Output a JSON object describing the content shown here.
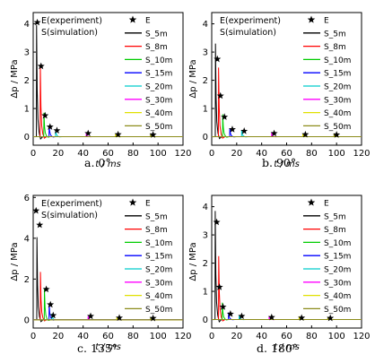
{
  "figure_captions": [
    "a.  0°",
    "b.  90°",
    "c.  135°",
    "d.  180°"
  ],
  "chart_data": [
    {
      "type": "line",
      "panel": "a",
      "caption": "a.  0°",
      "xlabel": "t / ms",
      "ylabel": "Δp / MPa",
      "xlim": [
        0,
        120
      ],
      "ylim": [
        -0.3,
        4.4
      ],
      "xticks": [
        0,
        20,
        40,
        60,
        80,
        100,
        120
      ],
      "yticks": [
        0,
        1,
        2,
        3,
        4
      ],
      "notes": [
        "E(experiment)",
        "S(simulation)"
      ],
      "legend": [
        "E",
        "S_5m",
        "S_8m",
        "S_10m",
        "S_15m",
        "S_20m",
        "S_30m",
        "S_40m",
        "S_50m"
      ],
      "legend_position": "top-right",
      "experiment": {
        "name": "E",
        "color": "#000000",
        "points": [
          [
            3.3,
            4.05
          ],
          [
            6.3,
            2.5
          ],
          [
            9.5,
            0.75
          ],
          [
            13.5,
            0.35
          ],
          [
            19.0,
            0.22
          ],
          [
            44.0,
            0.12
          ],
          [
            68.0,
            0.08
          ],
          [
            96.0,
            0.07
          ]
        ]
      },
      "series": [
        {
          "name": "S_5m",
          "color": "#000000",
          "arrival": 2.7,
          "peak": 3.95
        },
        {
          "name": "S_8m",
          "color": "#ff0000",
          "arrival": 5.7,
          "peak": 2.55
        },
        {
          "name": "S_10m",
          "color": "#00cc00",
          "arrival": 8.6,
          "peak": 0.85
        },
        {
          "name": "S_15m",
          "color": "#0000ff",
          "arrival": 12.8,
          "peak": 0.4
        },
        {
          "name": "S_20m",
          "color": "#00cccc",
          "arrival": 18.0,
          "peak": 0.26
        },
        {
          "name": "S_30m",
          "color": "#ff00ff",
          "arrival": 42.5,
          "peak": 0.13
        },
        {
          "name": "S_40m",
          "color": "#e0e000",
          "arrival": 66.0,
          "peak": 0.1
        },
        {
          "name": "S_50m",
          "color": "#8c8c1a",
          "arrival": 94.0,
          "peak": 0.08
        }
      ]
    },
    {
      "type": "line",
      "panel": "b",
      "caption": "b.  90°",
      "xlabel": "t / ms",
      "ylabel": "Δp / MPa",
      "xlim": [
        0,
        120
      ],
      "ylim": [
        -0.3,
        4.4
      ],
      "xticks": [
        0,
        20,
        40,
        60,
        80,
        100,
        120
      ],
      "yticks": [
        0,
        1,
        2,
        3,
        4
      ],
      "notes": [
        "E(experiment)",
        "S(simulation)"
      ],
      "legend": [
        "E",
        "S_5m",
        "S_8m",
        "S_10m",
        "S_15m",
        "S_20m",
        "S_30m",
        "S_40m",
        "S_50m"
      ],
      "legend_position": "top-right",
      "experiment": {
        "name": "E",
        "color": "#000000",
        "points": [
          [
            4.5,
            2.75
          ],
          [
            7.0,
            1.45
          ],
          [
            10.2,
            0.7
          ],
          [
            16.5,
            0.26
          ],
          [
            26.0,
            0.2
          ],
          [
            50.0,
            0.12
          ],
          [
            75.0,
            0.08
          ],
          [
            100.0,
            0.07
          ]
        ]
      },
      "series": [
        {
          "name": "S_5m",
          "color": "#000000",
          "arrival": 3.0,
          "peak": 3.3
        },
        {
          "name": "S_8m",
          "color": "#ff0000",
          "arrival": 5.5,
          "peak": 2.45
        },
        {
          "name": "S_10m",
          "color": "#00cc00",
          "arrival": 8.8,
          "peak": 0.8
        },
        {
          "name": "S_15m",
          "color": "#0000ff",
          "arrival": 14.5,
          "peak": 0.3
        },
        {
          "name": "S_20m",
          "color": "#00cccc",
          "arrival": 24.0,
          "peak": 0.22
        },
        {
          "name": "S_30m",
          "color": "#ff00ff",
          "arrival": 48.0,
          "peak": 0.14
        },
        {
          "name": "S_40m",
          "color": "#e0e000",
          "arrival": 73.0,
          "peak": 0.1
        },
        {
          "name": "S_50m",
          "color": "#8c8c1a",
          "arrival": 98.0,
          "peak": 0.08
        }
      ]
    },
    {
      "type": "line",
      "panel": "c",
      "caption": "c.  135°",
      "xlabel": "t / ms",
      "ylabel": "Δp / MPa",
      "xlim": [
        0,
        120
      ],
      "ylim": [
        -0.4,
        6.1
      ],
      "xticks": [
        0,
        20,
        40,
        60,
        80,
        100,
        120
      ],
      "yticks": [
        0,
        2,
        4,
        6
      ],
      "notes": [
        "E(experiment)",
        "S(simulation)"
      ],
      "legend": [
        "E",
        "S_5m",
        "S_8m",
        "S_10m",
        "S_15m",
        "S_20m",
        "S_30m",
        "S_40m",
        "S_50m"
      ],
      "legend_position": "top-right",
      "experiment": {
        "name": "E",
        "color": "#000000",
        "points": [
          [
            2.3,
            5.35
          ],
          [
            5.2,
            4.65
          ],
          [
            10.5,
            1.5
          ],
          [
            13.8,
            0.75
          ],
          [
            16.0,
            0.22
          ],
          [
            46.0,
            0.18
          ],
          [
            69.0,
            0.1
          ],
          [
            96.0,
            0.08
          ]
        ]
      },
      "series": [
        {
          "name": "S_5m",
          "color": "#000000",
          "arrival": 3.0,
          "peak": 4.05
        },
        {
          "name": "S_8m",
          "color": "#ff0000",
          "arrival": 5.8,
          "peak": 2.35
        },
        {
          "name": "S_10m",
          "color": "#00cc00",
          "arrival": 9.0,
          "peak": 1.5
        },
        {
          "name": "S_15m",
          "color": "#0000ff",
          "arrival": 12.8,
          "peak": 0.8
        },
        {
          "name": "S_20m",
          "color": "#00cccc",
          "arrival": 15.0,
          "peak": 0.3
        },
        {
          "name": "S_30m",
          "color": "#ff00ff",
          "arrival": 44.0,
          "peak": 0.18
        },
        {
          "name": "S_40m",
          "color": "#e0e000",
          "arrival": 67.0,
          "peak": 0.12
        },
        {
          "name": "S_50m",
          "color": "#8c8c1a",
          "arrival": 94.0,
          "peak": 0.09
        }
      ]
    },
    {
      "type": "line",
      "panel": "d",
      "caption": "d.  180°",
      "xlabel": "t / ms",
      "ylabel": "Δp / MPa",
      "xlim": [
        0,
        120
      ],
      "ylim": [
        -0.3,
        4.4
      ],
      "xticks": [
        0,
        20,
        40,
        60,
        80,
        100,
        120
      ],
      "yticks": [
        0,
        1,
        2,
        3,
        4
      ],
      "notes": [],
      "legend": [
        "E",
        "S_5m",
        "S_8m",
        "S_10m",
        "S_15m",
        "S_20m",
        "S_30m",
        "S_40m",
        "S_50m"
      ],
      "legend_position": "top-right",
      "experiment": {
        "name": "E",
        "color": "#000000",
        "points": [
          [
            4.0,
            3.45
          ],
          [
            6.2,
            1.15
          ],
          [
            9.0,
            0.45
          ],
          [
            15.0,
            0.2
          ],
          [
            24.0,
            0.12
          ],
          [
            48.0,
            0.08
          ],
          [
            72.0,
            0.06
          ],
          [
            95.0,
            0.05
          ]
        ]
      },
      "series": [
        {
          "name": "S_5m",
          "color": "#000000",
          "arrival": 2.8,
          "peak": 3.85
        },
        {
          "name": "S_8m",
          "color": "#ff0000",
          "arrival": 5.6,
          "peak": 2.25
        },
        {
          "name": "S_10m",
          "color": "#00cc00",
          "arrival": 8.5,
          "peak": 0.6
        },
        {
          "name": "S_15m",
          "color": "#0000ff",
          "arrival": 13.5,
          "peak": 0.25
        },
        {
          "name": "S_20m",
          "color": "#00cccc",
          "arrival": 22.0,
          "peak": 0.15
        },
        {
          "name": "S_30m",
          "color": "#ff00ff",
          "arrival": 46.0,
          "peak": 0.1
        },
        {
          "name": "S_40m",
          "color": "#e0e000",
          "arrival": 70.0,
          "peak": 0.08
        },
        {
          "name": "S_50m",
          "color": "#8c8c1a",
          "arrival": 93.0,
          "peak": 0.06
        }
      ]
    }
  ]
}
